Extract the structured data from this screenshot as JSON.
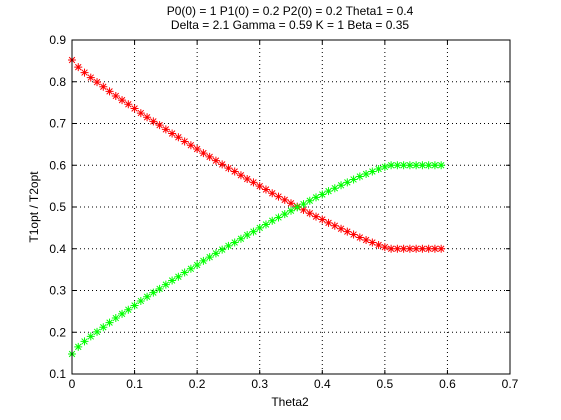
{
  "chart_data": {
    "type": "scatter",
    "title_lines": [
      "P0(0) = 1 P1(0) = 0.2 P2(0) = 0.2 Theta1 = 0.4",
      "Delta = 2.1 Gamma = 0.59 K = 1 Beta = 0.35"
    ],
    "xlabel": "Theta2",
    "ylabel": "T1opt / T2opt",
    "xlim": [
      0,
      0.7
    ],
    "ylim": [
      0.1,
      0.9
    ],
    "xticks": [
      "0",
      "0.1",
      "0.2",
      "0.3",
      "0.4",
      "0.5",
      "0.6",
      "0.7"
    ],
    "yticks": [
      "0.1",
      "0.2",
      "0.3",
      "0.4",
      "0.5",
      "0.6",
      "0.7",
      "0.8",
      "0.9"
    ],
    "grid": true,
    "marker": "*",
    "series": [
      {
        "color": "#ff0000",
        "x": [
          0,
          0.01,
          0.02,
          0.03,
          0.04,
          0.05,
          0.06,
          0.07,
          0.08,
          0.09,
          0.1,
          0.11,
          0.12,
          0.13,
          0.14,
          0.15,
          0.16,
          0.17,
          0.18,
          0.19,
          0.2,
          0.21,
          0.22,
          0.23,
          0.24,
          0.25,
          0.26,
          0.27,
          0.28,
          0.29,
          0.3,
          0.31,
          0.32,
          0.33,
          0.34,
          0.35,
          0.36,
          0.37,
          0.38,
          0.39,
          0.4,
          0.41,
          0.42,
          0.43,
          0.44,
          0.45,
          0.46,
          0.47,
          0.48,
          0.49,
          0.5,
          0.51,
          0.52,
          0.53,
          0.54,
          0.55,
          0.56,
          0.57,
          0.58,
          0.59
        ],
        "y": [
          0.852,
          0.835,
          0.822,
          0.81,
          0.799,
          0.788,
          0.777,
          0.766,
          0.756,
          0.746,
          0.736,
          0.725,
          0.715,
          0.705,
          0.696,
          0.686,
          0.676,
          0.667,
          0.657,
          0.648,
          0.639,
          0.629,
          0.62,
          0.611,
          0.602,
          0.593,
          0.585,
          0.576,
          0.567,
          0.559,
          0.55,
          0.542,
          0.533,
          0.525,
          0.517,
          0.509,
          0.501,
          0.493,
          0.485,
          0.477,
          0.47,
          0.462,
          0.455,
          0.448,
          0.441,
          0.434,
          0.427,
          0.421,
          0.415,
          0.409,
          0.404,
          0.4,
          0.4,
          0.4,
          0.4,
          0.4,
          0.4,
          0.4,
          0.4,
          0.4
        ]
      },
      {
        "color": "#00ff00",
        "x": [
          0,
          0.01,
          0.02,
          0.03,
          0.04,
          0.05,
          0.06,
          0.07,
          0.08,
          0.09,
          0.1,
          0.11,
          0.12,
          0.13,
          0.14,
          0.15,
          0.16,
          0.17,
          0.18,
          0.19,
          0.2,
          0.21,
          0.22,
          0.23,
          0.24,
          0.25,
          0.26,
          0.27,
          0.28,
          0.29,
          0.3,
          0.31,
          0.32,
          0.33,
          0.34,
          0.35,
          0.36,
          0.37,
          0.38,
          0.39,
          0.4,
          0.41,
          0.42,
          0.43,
          0.44,
          0.45,
          0.46,
          0.47,
          0.48,
          0.49,
          0.5,
          0.51,
          0.52,
          0.53,
          0.54,
          0.55,
          0.56,
          0.57,
          0.58,
          0.59
        ],
        "y": [
          0.148,
          0.165,
          0.178,
          0.19,
          0.201,
          0.212,
          0.223,
          0.234,
          0.244,
          0.254,
          0.264,
          0.275,
          0.285,
          0.295,
          0.304,
          0.314,
          0.324,
          0.333,
          0.343,
          0.352,
          0.361,
          0.371,
          0.38,
          0.389,
          0.398,
          0.407,
          0.415,
          0.424,
          0.433,
          0.441,
          0.45,
          0.458,
          0.467,
          0.475,
          0.483,
          0.491,
          0.499,
          0.507,
          0.515,
          0.523,
          0.53,
          0.538,
          0.545,
          0.552,
          0.559,
          0.566,
          0.573,
          0.579,
          0.585,
          0.591,
          0.596,
          0.6,
          0.6,
          0.6,
          0.6,
          0.6,
          0.6,
          0.6,
          0.6,
          0.6
        ]
      }
    ]
  }
}
